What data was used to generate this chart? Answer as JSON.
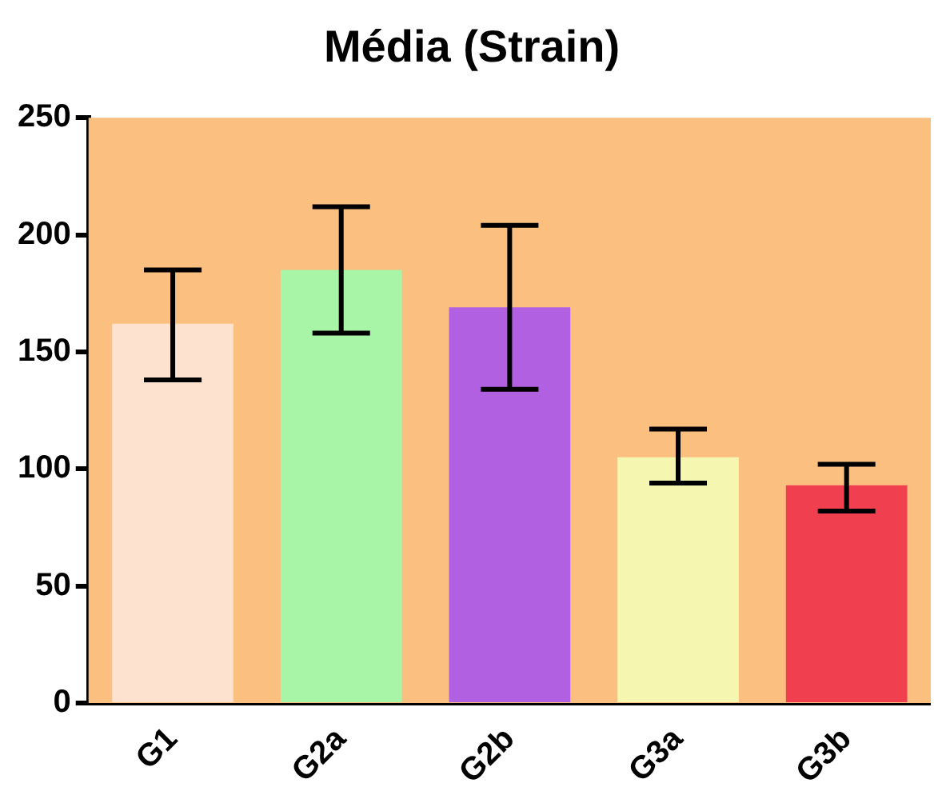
{
  "chart_data": {
    "type": "bar",
    "title": "Média (Strain)",
    "categories": [
      "G1",
      "G2a",
      "G2b",
      "G3a",
      "G3b"
    ],
    "values": [
      162,
      185,
      169,
      105,
      93
    ],
    "colors": [
      "#fde3cf",
      "#a8f5a8",
      "#b060e0",
      "#f5f7b0",
      "#f04050"
    ],
    "errors": [
      [
        138,
        185
      ],
      [
        158,
        212
      ],
      [
        134,
        204
      ],
      [
        94,
        117
      ],
      [
        82,
        102
      ]
    ],
    "ylim": [
      0,
      250
    ],
    "yticks": [
      0,
      50,
      100,
      150,
      200,
      250
    ],
    "grid": false,
    "legend": false
  }
}
